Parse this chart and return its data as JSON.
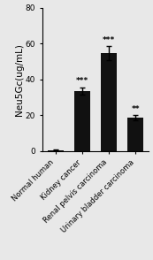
{
  "categories": [
    "Normal human",
    "Kidney cancer",
    "Renal pelvis carcinoma",
    "Urinary bladder carcinoma"
  ],
  "values": [
    0.5,
    33.5,
    54.5,
    18.5
  ],
  "errors": [
    0.2,
    2.0,
    4.0,
    1.5
  ],
  "bar_color": "#111111",
  "bar_width": 0.6,
  "ylabel": "Neu5Gc(ug/mL)",
  "ylim": [
    0,
    80
  ],
  "yticks": [
    0,
    20,
    40,
    60,
    80
  ],
  "significance": [
    "",
    "***",
    "***",
    "**"
  ],
  "sig_fontsize": 6.5,
  "ylabel_fontsize": 7.5,
  "ytick_fontsize": 6.5,
  "xtick_fontsize": 6.0,
  "background_color": "#e8e8e8",
  "elinewidth": 1.0,
  "capsize": 2.5,
  "capthick": 1.0
}
